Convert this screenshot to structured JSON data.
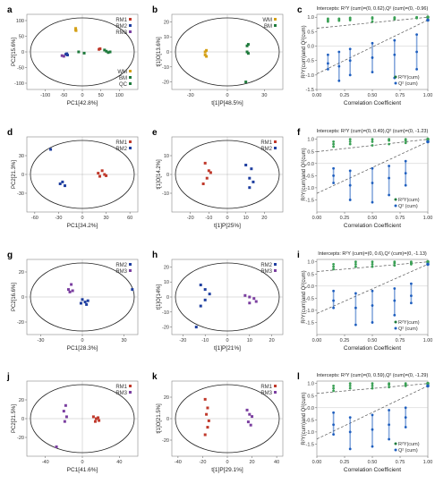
{
  "chart_data": [
    {
      "panel_label": "a",
      "type": "scatter",
      "xlabel": "PC1[42.8%]",
      "ylabel": "PC2[15.6%]",
      "xlim": [
        -150,
        150
      ],
      "ylim": [
        -120,
        120
      ],
      "xticks": [
        "-100",
        "-50",
        "0",
        "50",
        "100"
      ],
      "yticks": [
        "100",
        "50",
        "0",
        "-50",
        "-100"
      ],
      "legend": [
        {
          "label": "RM1",
          "color": "#c0392b"
        },
        {
          "label": "RM2",
          "color": "#1f3fa0"
        },
        {
          "label": "RM3",
          "color": "#7b3fa0"
        }
      ],
      "legend2": [
        {
          "label": "WM",
          "color": "#d4a017"
        },
        {
          "label": "BM",
          "color": "#1e7a3c"
        },
        {
          "label": "QC",
          "color": "#1e7a3c"
        }
      ],
      "series": [
        {
          "name": "RM1",
          "color": "#c0392b",
          "points": [
            [
              45,
              8
            ],
            [
              48,
              10
            ]
          ]
        },
        {
          "name": "RM2",
          "color": "#1f3fa0",
          "points": [
            [
              -45,
              -8
            ],
            [
              -40,
              -10
            ],
            [
              -42,
              -6
            ]
          ]
        },
        {
          "name": "RM3",
          "color": "#7b3fa0",
          "points": [
            [
              -55,
              -12
            ],
            [
              -50,
              -14
            ]
          ]
        },
        {
          "name": "WM",
          "color": "#d4a017",
          "points": [
            [
              -18,
              75
            ],
            [
              -18,
              70
            ],
            [
              -17,
              68
            ]
          ]
        },
        {
          "name": "BM",
          "color": "#1e7a3c",
          "points": [
            [
              60,
              6
            ],
            [
              65,
              2
            ],
            [
              70,
              -2
            ],
            [
              75,
              0
            ]
          ]
        },
        {
          "name": "QC",
          "color": "#1e7a3c",
          "points": [
            [
              -10,
              0
            ],
            [
              5,
              -4
            ]
          ]
        }
      ]
    },
    {
      "panel_label": "b",
      "type": "scatter",
      "xlabel": "t[1]P[48.5%]",
      "ylabel": "t[1]O[13.6%]",
      "xlim": [
        -45,
        45
      ],
      "ylim": [
        -25,
        25
      ],
      "xticks": [
        "-30",
        "0",
        "30"
      ],
      "yticks": [
        "20",
        "10",
        "0",
        "-10",
        "-20"
      ],
      "legend": [
        {
          "label": "WM",
          "color": "#d4a017"
        },
        {
          "label": "BM",
          "color": "#1e7a3c"
        }
      ],
      "series": [
        {
          "name": "WM",
          "color": "#d4a017",
          "points": [
            [
              -18,
              0
            ],
            [
              -17,
              1
            ],
            [
              -18,
              -2
            ],
            [
              -17,
              -3
            ]
          ]
        },
        {
          "name": "BM",
          "color": "#1e7a3c",
          "points": [
            [
              16,
              4
            ],
            [
              17,
              5
            ],
            [
              16,
              0
            ],
            [
              17,
              -1
            ],
            [
              15,
              -20
            ]
          ]
        }
      ]
    },
    {
      "panel_label": "c",
      "type": "scatter",
      "title": "Intercepts: R²Y (cum)=(0, 0.62),Q² (cum)=(0, -0.96)",
      "xlabel": "Correlation Coefficient",
      "ylabel": "R²Y(cum)and Q²(cum)",
      "xlim": [
        0,
        1
      ],
      "ylim": [
        -1.5,
        1.1
      ],
      "xticks": [
        "0.00",
        "0.25",
        "0.50",
        "0.75",
        "1.00"
      ],
      "yticks": [
        "1.0",
        "0.5",
        "0.0",
        "-0.5",
        "-1.0",
        "-1.5"
      ],
      "legend": [
        {
          "label": "R²Y(cum)",
          "color": "#1e7a3c"
        },
        {
          "label": "Q² (cum)",
          "color": "#1f5fbf"
        }
      ],
      "r2y_intercept": [
        0,
        0.62
      ],
      "q2_intercept": [
        0,
        -0.96
      ],
      "permutation_x": [
        0.1,
        0.2,
        0.3,
        0.5,
        0.7,
        0.9
      ],
      "r2y_perm": [
        [
          0.9,
          0.95,
          0.85
        ],
        [
          0.92,
          0.88,
          0.95
        ],
        [
          0.9,
          0.95,
          0.98
        ],
        [
          0.85,
          0.95,
          0.99
        ],
        [
          0.93,
          0.97,
          0.99
        ],
        [
          0.97,
          0.99,
          1.0
        ]
      ],
      "q2_perm": [
        [
          -0.3,
          -0.6,
          -0.8
        ],
        [
          -0.2,
          -0.7,
          -1.2
        ],
        [
          -0.1,
          -0.5,
          -1.0
        ],
        [
          0.1,
          -0.4,
          -0.9
        ],
        [
          0.2,
          -0.3,
          -1.1
        ],
        [
          0.4,
          -0.2,
          -0.8
        ]
      ]
    },
    {
      "panel_label": "d",
      "type": "scatter",
      "xlabel": "PC1[34.2%]",
      "ylabel": "PC2[21.3%]",
      "xlim": [
        -70,
        70
      ],
      "ylim": [
        -60,
        60
      ],
      "xticks": [
        "-60",
        "-30",
        "0",
        "30",
        "60"
      ],
      "yticks": [
        "30",
        "0",
        "-30"
      ],
      "legend": [
        {
          "label": "RM1",
          "color": "#c0392b"
        },
        {
          "label": "RM2",
          "color": "#1f3fa0"
        }
      ],
      "series": [
        {
          "name": "RM1",
          "color": "#c0392b",
          "points": [
            [
              20,
              2
            ],
            [
              25,
              6
            ],
            [
              22,
              -3
            ],
            [
              28,
              0
            ],
            [
              30,
              -2
            ]
          ]
        },
        {
          "name": "RM2",
          "color": "#1f3fa0",
          "points": [
            [
              -25,
              -12
            ],
            [
              -28,
              -15
            ],
            [
              -22,
              -18
            ],
            [
              -40,
              40
            ]
          ]
        }
      ]
    },
    {
      "panel_label": "e",
      "type": "scatter",
      "xlabel": "t[1]P[25%]",
      "ylabel": "t[1]O[14.2%]",
      "xlim": [
        -30,
        30
      ],
      "ylim": [
        -20,
        20
      ],
      "xticks": [
        "-20",
        "-10",
        "0",
        "10",
        "20"
      ],
      "yticks": [
        "10",
        "0",
        "-10"
      ],
      "legend": [
        {
          "label": "RM1",
          "color": "#c0392b"
        },
        {
          "label": "RM2",
          "color": "#1f3fa0"
        }
      ],
      "series": [
        {
          "name": "RM1",
          "color": "#c0392b",
          "points": [
            [
              -12,
              6
            ],
            [
              -10,
              2
            ],
            [
              -11,
              -2
            ],
            [
              -13,
              -5
            ],
            [
              -9,
              1
            ]
          ]
        },
        {
          "name": "RM2",
          "color": "#1f3fa0",
          "points": [
            [
              10,
              5
            ],
            [
              13,
              3
            ],
            [
              12,
              -2
            ],
            [
              14,
              -4
            ],
            [
              12,
              -7
            ]
          ]
        }
      ]
    },
    {
      "panel_label": "f",
      "type": "scatter",
      "title": "Intercepts: R²Y (cum)=(0, 0.49),Q² (cum)=(0, -1.23)",
      "xlabel": "Correlation Coefficient",
      "ylabel": "R²Y(cum)and Q²(cum)",
      "xlim": [
        0,
        1
      ],
      "ylim": [
        -2.0,
        1.1
      ],
      "xticks": [
        "0.00",
        "0.25",
        "0.50",
        "0.75",
        "1.00"
      ],
      "yticks": [
        "1.0",
        "0.5",
        "0.0",
        "-0.5",
        "-1.0",
        "-1.5"
      ],
      "legend": [
        {
          "label": "R²Y(cum)",
          "color": "#1e7a3c"
        },
        {
          "label": "Q² (cum)",
          "color": "#1f5fbf"
        }
      ],
      "r2y_intercept": [
        0,
        0.49
      ],
      "q2_intercept": [
        0,
        -1.23
      ],
      "permutation_x": [
        0.15,
        0.3,
        0.5,
        0.65,
        0.8
      ],
      "r2y_perm": [
        [
          0.7,
          0.8,
          0.9
        ],
        [
          0.8,
          0.9,
          1.0
        ],
        [
          0.75,
          0.9,
          1.0
        ],
        [
          0.8,
          0.95,
          1.0
        ],
        [
          0.85,
          0.95,
          1.0
        ]
      ],
      "q2_perm": [
        [
          -0.2,
          -0.5,
          -0.8
        ],
        [
          -0.3,
          -0.9,
          -1.5
        ],
        [
          -0.2,
          -0.8,
          -1.6
        ],
        [
          -0.1,
          -0.6,
          -1.3
        ],
        [
          0.1,
          -0.4,
          -0.9
        ]
      ]
    },
    {
      "panel_label": "g",
      "type": "scatter",
      "xlabel": "PC1[28.3%]",
      "ylabel": "PC2[16.6%]",
      "xlim": [
        -40,
        40
      ],
      "ylim": [
        -30,
        30
      ],
      "xticks": [
        "-30",
        "0",
        "30"
      ],
      "yticks": [
        "20",
        "0",
        "-20"
      ],
      "legend": [
        {
          "label": "RM2",
          "color": "#1f3fa0"
        },
        {
          "label": "RM3",
          "color": "#7b3fa0"
        }
      ],
      "series": [
        {
          "name": "RM2",
          "color": "#1f3fa0",
          "points": [
            [
              0,
              -2
            ],
            [
              2,
              -4
            ],
            [
              4,
              -3
            ],
            [
              -1,
              -5
            ],
            [
              3,
              -6
            ],
            [
              36,
              6
            ]
          ]
        },
        {
          "name": "RM3",
          "color": "#7b3fa0",
          "points": [
            [
              -8,
              10
            ],
            [
              -10,
              6
            ],
            [
              -7,
              5
            ],
            [
              -9,
              4
            ]
          ]
        }
      ]
    },
    {
      "panel_label": "h",
      "type": "scatter",
      "xlabel": "t[1]P[21%]",
      "ylabel": "t[1]O[14%]",
      "xlim": [
        -25,
        25
      ],
      "ylim": [
        -25,
        25
      ],
      "xticks": [
        "-20",
        "-10",
        "0",
        "10",
        "20"
      ],
      "yticks": [
        "20",
        "10",
        "0",
        "-10",
        "-20"
      ],
      "legend": [
        {
          "label": "RM2",
          "color": "#1f3fa0"
        },
        {
          "label": "RM3",
          "color": "#7b3fa0"
        }
      ],
      "series": [
        {
          "name": "RM2",
          "color": "#1f3fa0",
          "points": [
            [
              -12,
              8
            ],
            [
              -10,
              5
            ],
            [
              -8,
              2
            ],
            [
              -10,
              -2
            ],
            [
              -12,
              -6
            ],
            [
              -14,
              -20
            ]
          ]
        },
        {
          "name": "RM3",
          "color": "#7b3fa0",
          "points": [
            [
              8,
              1
            ],
            [
              10,
              0
            ],
            [
              12,
              -1
            ],
            [
              13,
              -3
            ],
            [
              10,
              -4
            ]
          ]
        }
      ]
    },
    {
      "panel_label": "i",
      "type": "scatter",
      "title": "Intercepts: R²Y (cum)=(0, 0.6),Q² (cum)=(0, -1.13)",
      "xlabel": "Correlation Coefficient",
      "ylabel": "R²Y(cum)and Q²(cum)",
      "xlim": [
        0,
        1
      ],
      "ylim": [
        -2.0,
        1.1
      ],
      "xticks": [
        "0.00",
        "0.25",
        "0.50",
        "0.75",
        "1.00"
      ],
      "yticks": [
        "1.0",
        "0.5",
        "0.0",
        "-0.5",
        "-1.0",
        "-1.5"
      ],
      "legend": [
        {
          "label": "R²Y(cum)",
          "color": "#1e7a3c"
        },
        {
          "label": "Q² (cum)",
          "color": "#1f5fbf"
        }
      ],
      "r2y_intercept": [
        0,
        0.6
      ],
      "q2_intercept": [
        0,
        -1.13
      ],
      "permutation_x": [
        0.15,
        0.35,
        0.5,
        0.7,
        0.85
      ],
      "r2y_perm": [
        [
          0.7,
          0.8,
          0.9
        ],
        [
          0.8,
          0.9,
          1.0
        ],
        [
          0.8,
          0.9,
          1.0
        ],
        [
          0.85,
          0.95,
          1.0
        ],
        [
          0.9,
          0.95,
          1.0
        ]
      ],
      "q2_perm": [
        [
          -0.2,
          -0.6,
          -0.9
        ],
        [
          -0.3,
          -0.9,
          -1.6
        ],
        [
          -0.2,
          -0.8,
          -1.5
        ],
        [
          -0.1,
          -0.6,
          -1.2
        ],
        [
          0.1,
          -0.4,
          -0.7
        ]
      ]
    },
    {
      "panel_label": "j",
      "type": "scatter",
      "xlabel": "PC1[41.6%]",
      "ylabel": "PC2[21.5%]",
      "xlim": [
        -60,
        60
      ],
      "ylim": [
        -40,
        40
      ],
      "xticks": [
        "-40",
        "0",
        "40"
      ],
      "yticks": [
        "20",
        "0",
        "-20"
      ],
      "legend": [
        {
          "label": "RM1",
          "color": "#c0392b"
        },
        {
          "label": "RM3",
          "color": "#7b3fa0"
        }
      ],
      "series": [
        {
          "name": "RM1",
          "color": "#c0392b",
          "points": [
            [
              12,
              2
            ],
            [
              15,
              0
            ],
            [
              14,
              -3
            ],
            [
              17,
              1
            ],
            [
              18,
              -2
            ]
          ]
        },
        {
          "name": "RM3",
          "color": "#7b3fa0",
          "points": [
            [
              -18,
              14
            ],
            [
              -20,
              8
            ],
            [
              -17,
              2
            ],
            [
              -19,
              -3
            ],
            [
              -28,
              -30
            ]
          ]
        }
      ]
    },
    {
      "panel_label": "k",
      "type": "scatter",
      "xlabel": "t[1]P[29.1%]",
      "ylabel": "t[1]O[21.5%]",
      "xlim": [
        -45,
        45
      ],
      "ylim": [
        -35,
        35
      ],
      "xticks": [
        "-40",
        "-20",
        "0",
        "20",
        "40"
      ],
      "yticks": [
        "20",
        "0",
        "-20"
      ],
      "legend": [
        {
          "label": "RM1",
          "color": "#c0392b"
        },
        {
          "label": "RM3",
          "color": "#7b3fa0"
        }
      ],
      "series": [
        {
          "name": "RM1",
          "color": "#c0392b",
          "points": [
            [
              -18,
              18
            ],
            [
              -16,
              10
            ],
            [
              -17,
              4
            ],
            [
              -15,
              -2
            ],
            [
              -16,
              -8
            ],
            [
              -18,
              -15
            ]
          ]
        },
        {
          "name": "RM3",
          "color": "#7b3fa0",
          "points": [
            [
              16,
              8
            ],
            [
              18,
              4
            ],
            [
              20,
              2
            ],
            [
              17,
              -3
            ],
            [
              19,
              -6
            ]
          ]
        }
      ]
    },
    {
      "panel_label": "l",
      "type": "scatter",
      "title": "Intercepts: R²Y (cum)=(0, 0.59),Q² (cum)=(0, -1.29)",
      "xlabel": "Correlation Coefficient",
      "ylabel": "R²Y(cum)and Q²(cum)",
      "xlim": [
        0,
        1
      ],
      "ylim": [
        -2.0,
        1.1
      ],
      "xticks": [
        "0.00",
        "0.25",
        "0.50",
        "0.75",
        "1.00"
      ],
      "yticks": [
        "1.0",
        "0.5",
        "0.0",
        "-0.5",
        "-1.0",
        "-1.5"
      ],
      "legend": [
        {
          "label": "R²Y(cum)",
          "color": "#1e7a3c"
        },
        {
          "label": "Q² (cum)",
          "color": "#1f5fbf"
        }
      ],
      "r2y_intercept": [
        0,
        0.59
      ],
      "q2_intercept": [
        0,
        -1.29
      ],
      "permutation_x": [
        0.15,
        0.3,
        0.5,
        0.65,
        0.8
      ],
      "r2y_perm": [
        [
          0.7,
          0.8,
          0.9
        ],
        [
          0.8,
          0.9,
          1.0
        ],
        [
          0.8,
          0.9,
          1.0
        ],
        [
          0.85,
          0.95,
          1.0
        ],
        [
          0.9,
          0.95,
          1.0
        ]
      ],
      "q2_perm": [
        [
          -0.2,
          -0.7,
          -1.1
        ],
        [
          -0.4,
          -1.0,
          -1.7
        ],
        [
          -0.3,
          -0.9,
          -1.6
        ],
        [
          -0.1,
          -0.7,
          -1.3
        ],
        [
          0.0,
          -0.4,
          -0.8
        ]
      ]
    }
  ]
}
